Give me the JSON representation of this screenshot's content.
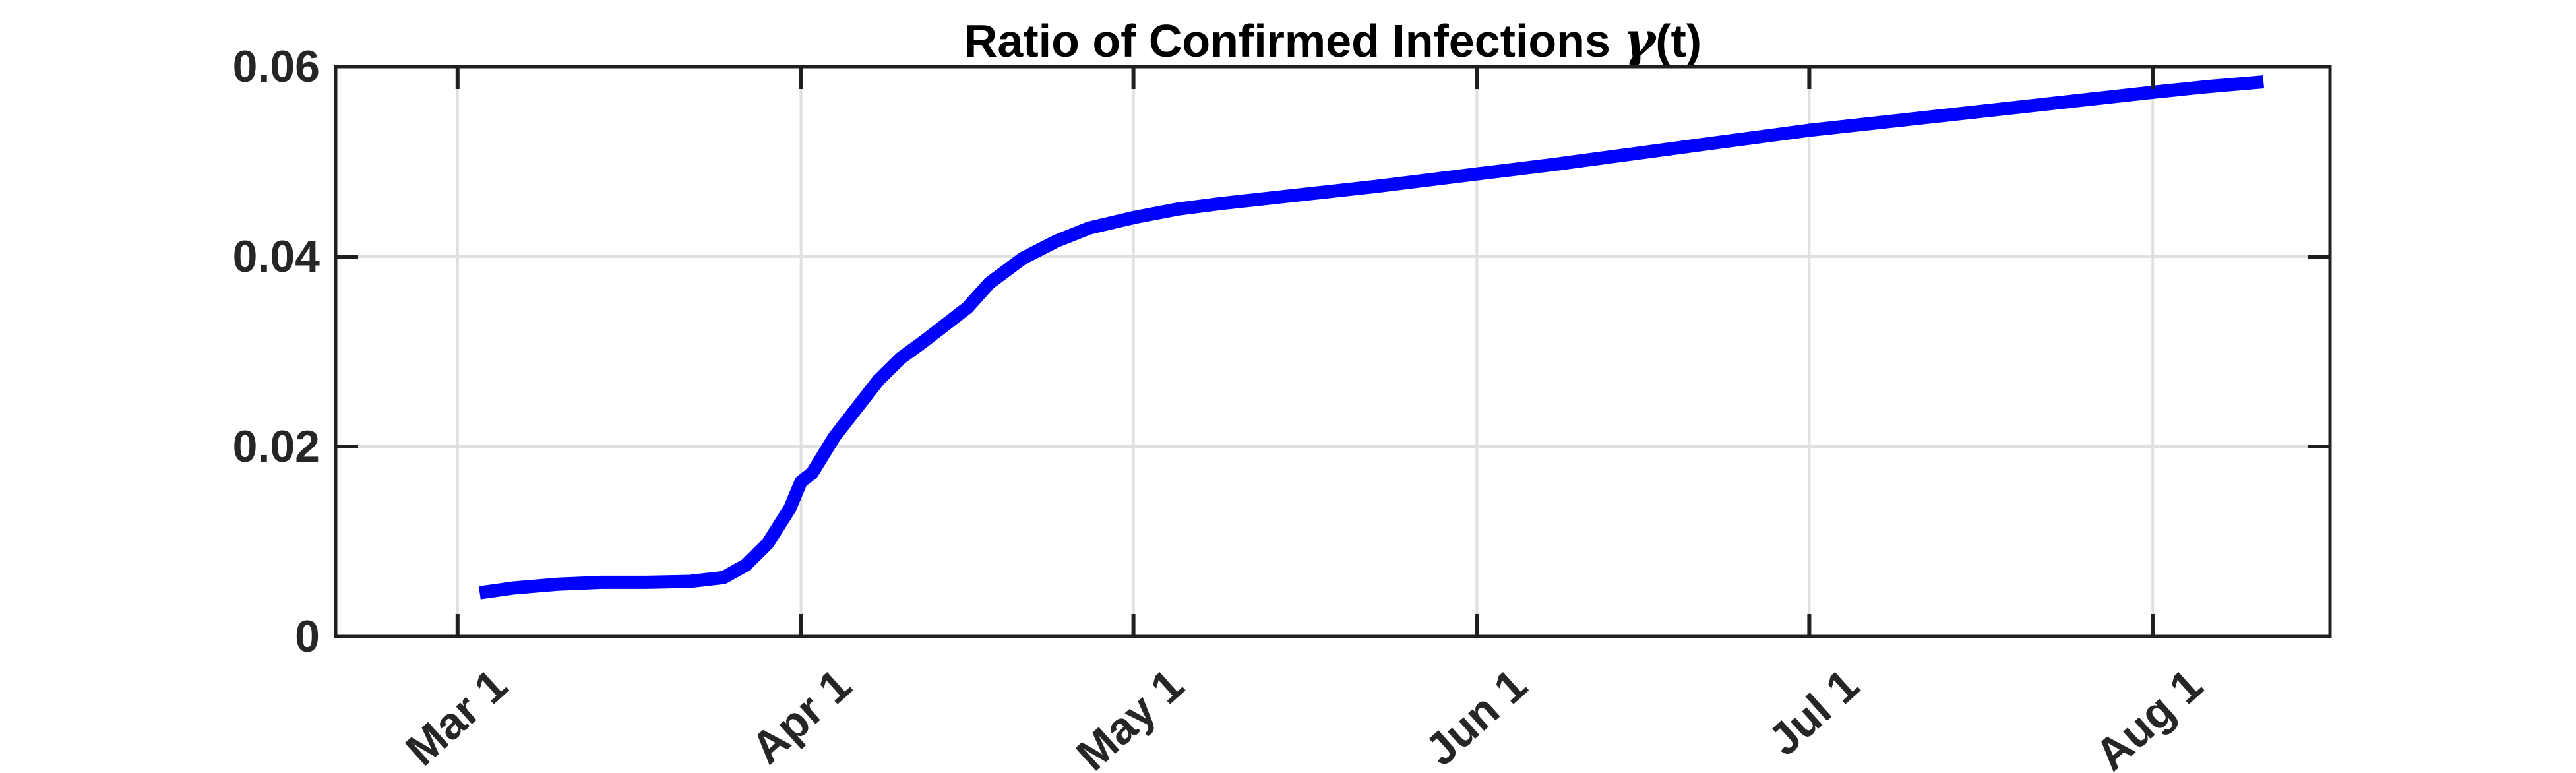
{
  "figure": {
    "title": {
      "prefix": "Ratio of Confirmed Infections ",
      "gamma": "γ",
      "suffix": "(t)"
    }
  },
  "chart_data": {
    "type": "line",
    "title": "Ratio of Confirmed Infections γ(t)",
    "xlabel": "",
    "ylabel": "",
    "x_axis_unit": "days relative to Mar 1",
    "x_range_days": [
      -11,
      169
    ],
    "y_range": [
      0,
      0.06
    ],
    "grid": true,
    "box": true,
    "y_ticks": [
      {
        "value": 0,
        "label": "0"
      },
      {
        "value": 0.02,
        "label": "0.02"
      },
      {
        "value": 0.04,
        "label": "0.04"
      },
      {
        "value": 0.06,
        "label": "0.06"
      }
    ],
    "x_ticks": [
      {
        "day": 0,
        "label": "Mar 1"
      },
      {
        "day": 31,
        "label": "Apr 1"
      },
      {
        "day": 61,
        "label": "May 1"
      },
      {
        "day": 92,
        "label": "Jun 1"
      },
      {
        "day": 122,
        "label": "Jul 1"
      },
      {
        "day": 153,
        "label": "Aug 1"
      }
    ],
    "colors": {
      "line": "#0000ff",
      "axis": "#1f1f1f",
      "grid": "#e0e0e0",
      "tick_label": "#262626",
      "title": "#000000"
    },
    "series": [
      {
        "name": "gamma(t)",
        "color": "#0000ff",
        "points": [
          [
            2,
            0.0046
          ],
          [
            5,
            0.0051
          ],
          [
            9,
            0.0055
          ],
          [
            13,
            0.0057
          ],
          [
            17,
            0.0057
          ],
          [
            21,
            0.0058
          ],
          [
            24,
            0.0062
          ],
          [
            26,
            0.0075
          ],
          [
            28,
            0.0098
          ],
          [
            30,
            0.0135
          ],
          [
            31,
            0.0163
          ],
          [
            32,
            0.0172
          ],
          [
            34,
            0.021
          ],
          [
            36,
            0.024
          ],
          [
            38,
            0.027
          ],
          [
            40,
            0.0293
          ],
          [
            42,
            0.031
          ],
          [
            44,
            0.0328
          ],
          [
            46,
            0.0346
          ],
          [
            48,
            0.0372
          ],
          [
            51,
            0.0398
          ],
          [
            54,
            0.0416
          ],
          [
            57,
            0.043
          ],
          [
            61,
            0.0441
          ],
          [
            65,
            0.045
          ],
          [
            69,
            0.0456
          ],
          [
            76,
            0.0465
          ],
          [
            83,
            0.0474
          ],
          [
            92,
            0.0487
          ],
          [
            99,
            0.0497
          ],
          [
            106,
            0.0508
          ],
          [
            113,
            0.0519
          ],
          [
            122,
            0.0533
          ],
          [
            129,
            0.0542
          ],
          [
            136,
            0.0551
          ],
          [
            143,
            0.056
          ],
          [
            153,
            0.0573
          ],
          [
            158,
            0.0579
          ],
          [
            163,
            0.0584
          ]
        ]
      }
    ]
  }
}
